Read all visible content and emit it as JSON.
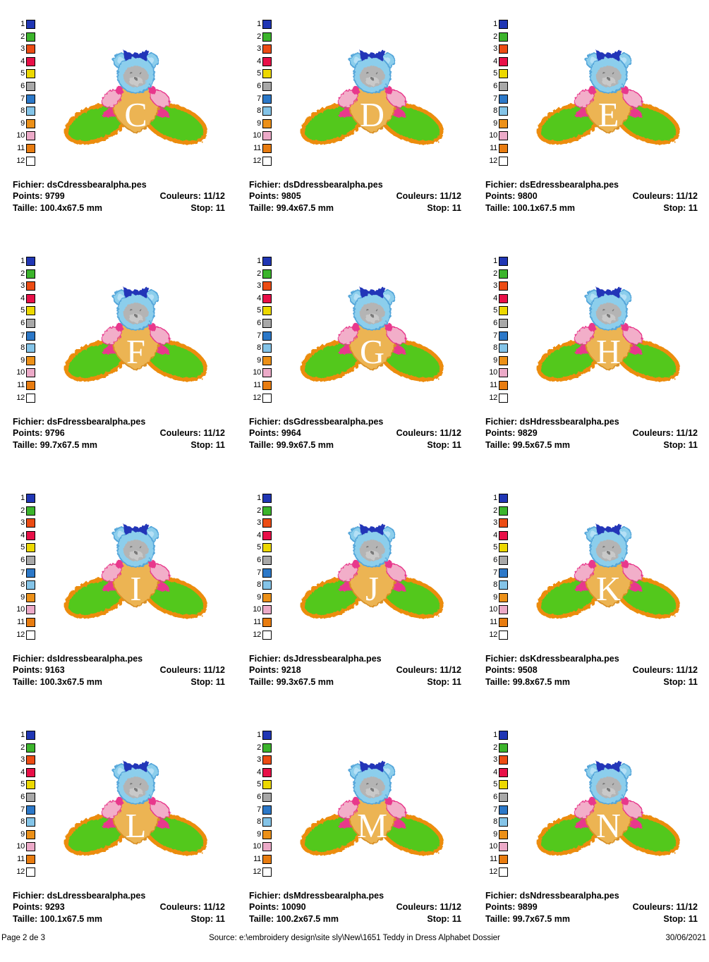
{
  "labels": {
    "fichier": "Fichier:",
    "points": "Points:",
    "couleurs": "Couleurs:",
    "taille": "Taille:",
    "stop": "Stop:"
  },
  "palette": [
    {
      "num": "1",
      "color": "#2036b4"
    },
    {
      "num": "2",
      "color": "#3cb42c"
    },
    {
      "num": "3",
      "color": "#ec4c14"
    },
    {
      "num": "4",
      "color": "#e81048"
    },
    {
      "num": "5",
      "color": "#ecd800"
    },
    {
      "num": "6",
      "color": "#a8a8a8"
    },
    {
      "num": "7",
      "color": "#2c78c8"
    },
    {
      "num": "8",
      "color": "#84c4e8"
    },
    {
      "num": "9",
      "color": "#ec9018"
    },
    {
      "num": "10",
      "color": "#ecaac8"
    },
    {
      "num": "11",
      "color": "#e87c10"
    },
    {
      "num": "12",
      "color": "#ffffff"
    }
  ],
  "bear_colors": {
    "bow": "#2336b8",
    "head": "#8cceec",
    "head-stroke": "#54a6da",
    "ear-inner": "#b4e0f6",
    "face": "#b4b4b4",
    "muzzle": "#c9c9c9",
    "eye": "#7a7a7a",
    "dress": "#ecb452",
    "dress-stroke": "#d89028",
    "arm": "#f2aec9",
    "arm-stroke": "#e8388c",
    "accent": "#e8388c",
    "foot": "#52c81e",
    "foot-stroke": "#ec8c0c",
    "letter": "#ffffff"
  },
  "designs": [
    {
      "letter": "C",
      "file": "dsCdressbearalpha.pes",
      "points": "9799",
      "couleurs": "11/12",
      "taille": "100.4x67.5 mm",
      "stop": "11"
    },
    {
      "letter": "D",
      "file": "dsDdressbearalpha.pes",
      "points": "9805",
      "couleurs": "11/12",
      "taille": "99.4x67.5 mm",
      "stop": "11"
    },
    {
      "letter": "E",
      "file": "dsEdressbearalpha.pes",
      "points": "9800",
      "couleurs": "11/12",
      "taille": "100.1x67.5 mm",
      "stop": "11"
    },
    {
      "letter": "F",
      "file": "dsFdressbearalpha.pes",
      "points": "9796",
      "couleurs": "11/12",
      "taille": "99.7x67.5 mm",
      "stop": "11"
    },
    {
      "letter": "G",
      "file": "dsGdressbearalpha.pes",
      "points": "9964",
      "couleurs": "11/12",
      "taille": "99.9x67.5 mm",
      "stop": "11"
    },
    {
      "letter": "H",
      "file": "dsHdressbearalpha.pes",
      "points": "9829",
      "couleurs": "11/12",
      "taille": "99.5x67.5 mm",
      "stop": "11"
    },
    {
      "letter": "I",
      "file": "dsIdressbearalpha.pes",
      "points": "9163",
      "couleurs": "11/12",
      "taille": "100.3x67.5 mm",
      "stop": "11"
    },
    {
      "letter": "J",
      "file": "dsJdressbearalpha.pes",
      "points": "9218",
      "couleurs": "11/12",
      "taille": "99.3x67.5 mm",
      "stop": "11"
    },
    {
      "letter": "K",
      "file": "dsKdressbearalpha.pes",
      "points": "9508",
      "couleurs": "11/12",
      "taille": "99.8x67.5 mm",
      "stop": "11"
    },
    {
      "letter": "L",
      "file": "dsLdressbearalpha.pes",
      "points": "9293",
      "couleurs": "11/12",
      "taille": "100.1x67.5 mm",
      "stop": "11"
    },
    {
      "letter": "M",
      "file": "dsMdressbearalpha.pes",
      "points": "10090",
      "couleurs": "11/12",
      "taille": "100.2x67.5 mm",
      "stop": "11"
    },
    {
      "letter": "N",
      "file": "dsNdressbearalpha.pes",
      "points": "9899",
      "couleurs": "11/12",
      "taille": "99.7x67.5 mm",
      "stop": "11"
    }
  ],
  "footer": {
    "page_number": "Page 2 de 3",
    "source": "Source: e:\\embroidery design\\site sly\\New\\1651 Teddy in Dress Alphabet Dossier",
    "date": "30/06/2021"
  }
}
